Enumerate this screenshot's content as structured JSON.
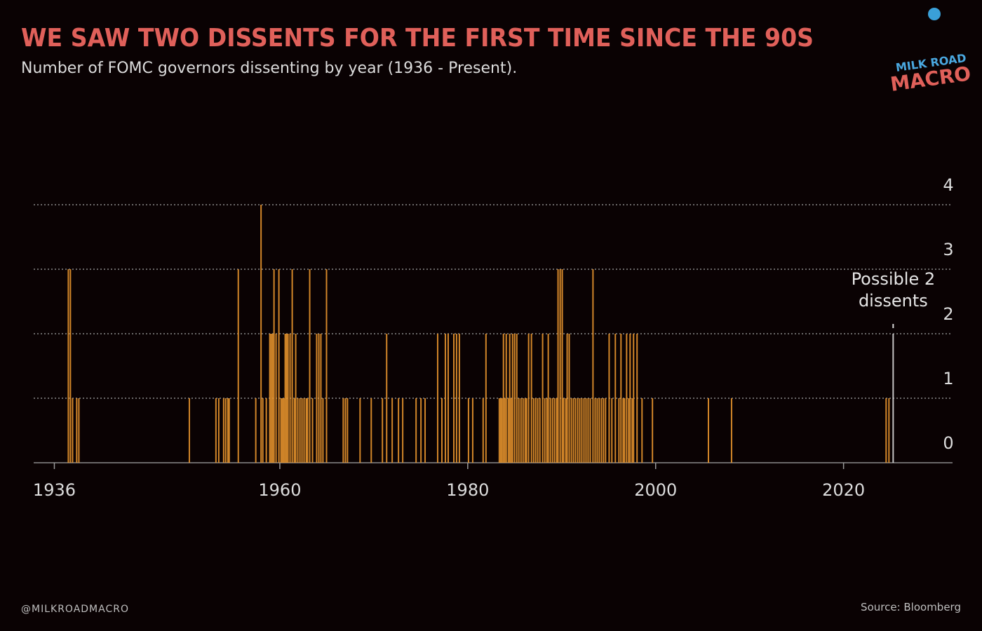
{
  "chart_data": {
    "type": "bar",
    "title": "WE SAW TWO DISSENTS FOR THE FIRST TIME SINCE THE 90S",
    "subtitle": "Number of FOMC governors dissenting by year (1936 - Present).",
    "logo": [
      "MILK ROAD",
      "MACRO"
    ],
    "handle": "@MILKROADMACRO",
    "source": "Source: Bloomberg",
    "color": "#e8952e",
    "x": [
      1937.49,
      1937.71,
      1937.94,
      1938.38,
      1938.61,
      1950.37,
      1953.2,
      1953.5,
      1954.02,
      1954.24,
      1954.47,
      1954.61,
      1955.58,
      1957.44,
      1958.0,
      1958.19,
      1958.56,
      1958.93,
      1959.08,
      1959.23,
      1959.38,
      1959.6,
      1959.9,
      1960.12,
      1960.27,
      1960.42,
      1960.57,
      1960.72,
      1960.87,
      1961.09,
      1961.32,
      1961.54,
      1961.69,
      1961.91,
      1962.14,
      1962.36,
      1962.58,
      1962.81,
      1962.95,
      1963.18,
      1963.48,
      1963.92,
      1964.15,
      1964.37,
      1964.59,
      1964.97,
      1966.75,
      1966.98,
      1967.2,
      1968.54,
      1969.73,
      1970.92,
      1971.37,
      1971.96,
      1972.63,
      1973.08,
      1974.5,
      1975.02,
      1975.46,
      1976.8,
      1977.25,
      1977.62,
      1977.92,
      1978.52,
      1978.81,
      1979.11,
      1980.08,
      1980.53,
      1981.64,
      1981.94,
      1983.36,
      1983.51,
      1983.65,
      1983.8,
      1983.95,
      1984.1,
      1984.32,
      1984.47,
      1984.62,
      1984.77,
      1984.99,
      1985.22,
      1985.44,
      1985.67,
      1985.89,
      1986.11,
      1986.26,
      1986.48,
      1986.78,
      1987.01,
      1987.23,
      1987.45,
      1987.68,
      1987.97,
      1988.2,
      1988.42,
      1988.57,
      1988.79,
      1989.02,
      1989.24,
      1989.46,
      1989.61,
      1989.84,
      1990.06,
      1990.21,
      1990.43,
      1990.58,
      1990.8,
      1991.03,
      1991.25,
      1991.47,
      1991.7,
      1991.92,
      1992.14,
      1992.37,
      1992.59,
      1992.81,
      1993.04,
      1993.33,
      1993.56,
      1993.78,
      1994.0,
      1994.23,
      1994.45,
      1994.67,
      1995.05,
      1995.34,
      1995.71,
      1996.09,
      1996.31,
      1996.54,
      1996.69,
      1996.91,
      1997.13,
      1997.28,
      1997.5,
      1997.65,
      1998.02,
      1998.55,
      1999.66,
      2005.62,
      2008.08,
      2024.53,
      2024.83
    ],
    "values": [
      3,
      3,
      1,
      1,
      1,
      1,
      1,
      1,
      1,
      1,
      1,
      1,
      3,
      1,
      4,
      1,
      1,
      2,
      2,
      2,
      3,
      2,
      3,
      1,
      1,
      1,
      2,
      2,
      2,
      2,
      3,
      1,
      2,
      1,
      1,
      1,
      1,
      1,
      1,
      3,
      1,
      2,
      2,
      2,
      1,
      3,
      1,
      1,
      1,
      1,
      1,
      1,
      2,
      1,
      1,
      1,
      1,
      1,
      1,
      2,
      1,
      2,
      2,
      2,
      2,
      2,
      1,
      1,
      1,
      2,
      1,
      1,
      1,
      2,
      1,
      2,
      1,
      2,
      1,
      2,
      2,
      2,
      1,
      1,
      1,
      1,
      1,
      2,
      2,
      1,
      1,
      1,
      1,
      2,
      1,
      1,
      2,
      1,
      1,
      1,
      1,
      3,
      3,
      3,
      1,
      1,
      2,
      2,
      1,
      1,
      1,
      1,
      1,
      1,
      1,
      1,
      1,
      1,
      3,
      1,
      1,
      1,
      1,
      1,
      1,
      2,
      1,
      2,
      1,
      2,
      1,
      1,
      2,
      1,
      2,
      1,
      2,
      2,
      1,
      1,
      1,
      1,
      1,
      1
    ],
    "highlight": {
      "x": 2025.28,
      "value": 2,
      "color": "#d8d8d8",
      "label": [
        "Possible 2",
        "dissents"
      ]
    },
    "xlim": [
      1933.8,
      2031.6
    ],
    "xticks": [
      1936,
      1960,
      1980,
      2000,
      2020
    ],
    "ylim": [
      0,
      4
    ],
    "yticks": [
      0,
      1,
      2,
      3,
      4
    ],
    "grid": true
  }
}
